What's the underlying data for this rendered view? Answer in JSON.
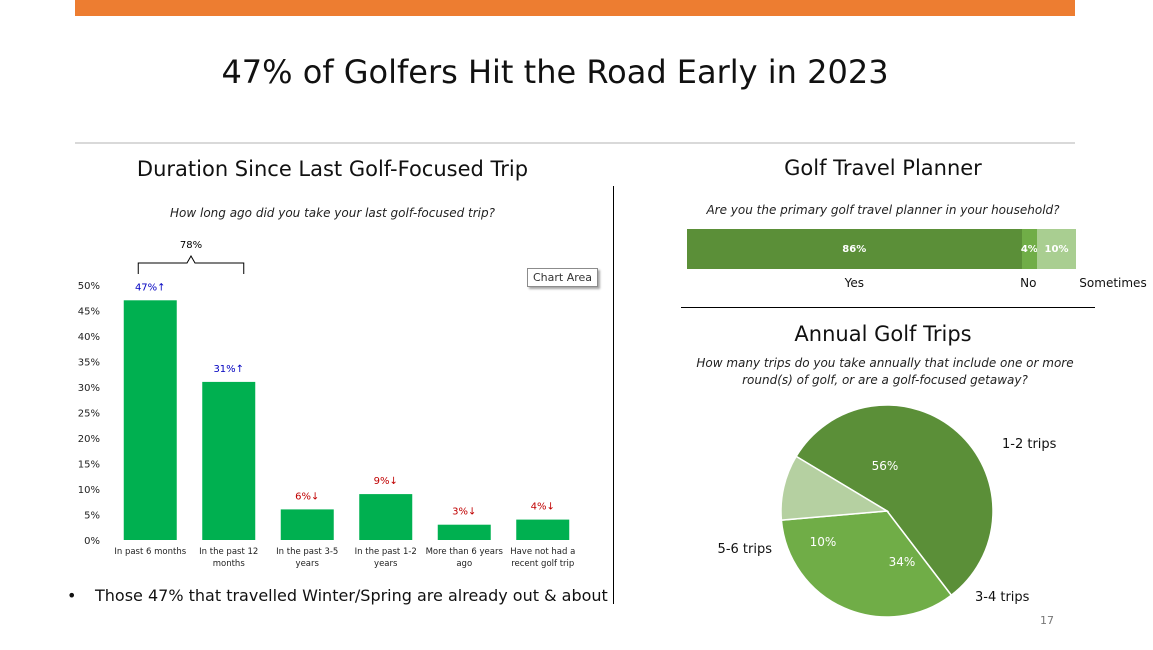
{
  "title": "47% of Golfers Hit the Road Early in 2023",
  "page_number": "17",
  "colors": {
    "accent": "#ED7D31",
    "bar_green": "#00B050",
    "up": "#0000C0",
    "down": "#C00000"
  },
  "duration_section": {
    "title": "Duration Since Last Golf-Focused Trip",
    "question": "How long ago did you take your last golf-focused trip?",
    "bracket_label": "78%",
    "chart_area_tag": "Chart Area",
    "bullet": "Those 47% that travelled Winter/Spring are already out & about"
  },
  "planner_section": {
    "title": "Golf Travel Planner",
    "question": "Are you the primary golf travel planner in your household?"
  },
  "trips_section": {
    "title": "Annual Golf Trips",
    "question_line1": "How many trips do you take annually that include one or more",
    "question_line2": "round(s) of golf, or are a golf-focused getaway?"
  },
  "chart_data": [
    {
      "type": "bar",
      "categories": [
        [
          "In past 6 months"
        ],
        [
          "In the past 12",
          "months"
        ],
        [
          "In the past 3-5",
          "years"
        ],
        [
          "In the past 1-2",
          "years"
        ],
        [
          "More than 6 years",
          "ago"
        ],
        [
          "Have not had a",
          "recent golf trip"
        ]
      ],
      "values": [
        47,
        31,
        6,
        9,
        3,
        4
      ],
      "data_labels": [
        "47%↑",
        "31%↑",
        "6%↓",
        "9%↓",
        "3%↓",
        "4%↓"
      ],
      "label_trend": [
        "up",
        "up",
        "down",
        "down",
        "down",
        "down"
      ],
      "ylim": [
        0,
        50
      ],
      "yticks": [
        "0%",
        "5%",
        "10%",
        "15%",
        "20%",
        "25%",
        "30%",
        "35%",
        "40%",
        "45%",
        "50%"
      ],
      "grid": false
    },
    {
      "type": "bar",
      "orientation": "horizontal-stacked",
      "categories": [
        "Yes",
        "No",
        "Sometimes"
      ],
      "values": [
        86,
        4,
        10
      ],
      "data_labels": [
        "86%",
        "4%",
        "10%"
      ],
      "colors": [
        "#5B8F38",
        "#70AD47",
        "#A9CE91"
      ]
    },
    {
      "type": "pie",
      "categories": [
        "1-2 trips",
        "3-4 trips",
        "5-6 trips"
      ],
      "values": [
        56,
        34,
        10
      ],
      "data_labels": [
        "56%",
        "34%",
        "10%"
      ],
      "colors": [
        "#5B8F38",
        "#70AD47",
        "#B5D0A1"
      ]
    }
  ]
}
